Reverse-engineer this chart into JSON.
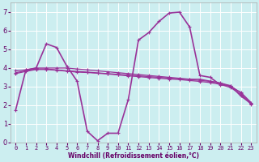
{
  "xlabel": "Windchill (Refroidissement éolien,°C)",
  "ylabel": "",
  "xlim": [
    -0.5,
    23.5
  ],
  "ylim": [
    0,
    7.5
  ],
  "background_color": "#cceef0",
  "grid_color": "#ffffff",
  "line_color": "#993399",
  "x_ticks": [
    0,
    1,
    2,
    3,
    4,
    5,
    6,
    7,
    8,
    9,
    10,
    11,
    12,
    13,
    14,
    15,
    16,
    17,
    18,
    19,
    20,
    21,
    22,
    23
  ],
  "y_ticks": [
    0,
    1,
    2,
    3,
    4,
    5,
    6,
    7
  ],
  "series": [
    {
      "x": [
        0,
        1,
        2,
        3,
        4,
        5,
        6,
        7,
        8,
        9,
        10,
        11,
        12,
        13,
        14,
        15,
        16,
        17,
        18,
        19,
        20,
        21,
        22,
        23
      ],
      "y": [
        1.75,
        3.9,
        4.0,
        5.3,
        5.1,
        4.1,
        3.3,
        0.6,
        0.1,
        0.5,
        0.5,
        2.3,
        5.5,
        5.9,
        6.5,
        6.95,
        7.0,
        6.2,
        3.6,
        3.5,
        3.1,
        3.05,
        2.5,
        2.1
      ]
    },
    {
      "x": [
        0,
        1,
        2,
        3,
        4,
        5,
        6,
        7,
        8,
        9,
        10,
        11,
        12,
        13,
        14,
        15,
        16,
        17,
        18,
        19,
        20,
        21,
        22,
        23
      ],
      "y": [
        3.85,
        3.9,
        4.0,
        4.0,
        4.0,
        4.0,
        3.95,
        3.9,
        3.85,
        3.8,
        3.75,
        3.7,
        3.65,
        3.6,
        3.55,
        3.5,
        3.45,
        3.4,
        3.4,
        3.3,
        3.2,
        3.05,
        2.65,
        2.1
      ]
    },
    {
      "x": [
        0,
        1,
        2,
        3,
        4,
        5,
        6,
        7,
        8,
        9,
        10,
        11,
        12,
        13,
        14,
        15,
        16,
        17,
        18,
        19,
        20,
        21,
        22,
        23
      ],
      "y": [
        3.75,
        3.85,
        3.95,
        3.95,
        3.9,
        3.85,
        3.82,
        3.78,
        3.74,
        3.7,
        3.66,
        3.62,
        3.58,
        3.54,
        3.5,
        3.46,
        3.42,
        3.38,
        3.34,
        3.28,
        3.18,
        3.0,
        2.7,
        2.15
      ]
    },
    {
      "x": [
        0,
        1,
        2,
        3,
        4,
        5,
        6,
        7,
        8,
        9,
        10,
        11,
        12,
        13,
        14,
        15,
        16,
        17,
        18,
        19,
        20,
        21,
        22,
        23
      ],
      "y": [
        3.7,
        3.82,
        3.92,
        3.92,
        3.88,
        3.83,
        3.78,
        3.76,
        3.72,
        3.68,
        3.63,
        3.58,
        3.54,
        3.49,
        3.45,
        3.41,
        3.38,
        3.33,
        3.28,
        3.22,
        3.12,
        2.95,
        2.58,
        2.05
      ]
    }
  ]
}
